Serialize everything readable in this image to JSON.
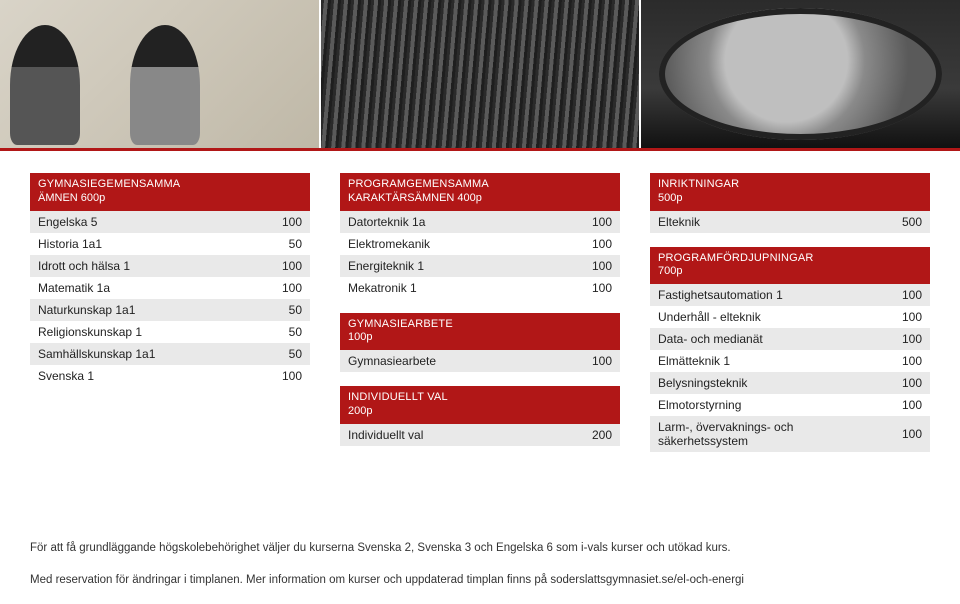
{
  "colors": {
    "red": "#b11717",
    "row_alt": "#e9e9e9",
    "text": "#222222",
    "bg": "#ffffff"
  },
  "col1": {
    "sections": [
      {
        "title1": "GYMNASIEGEMENSAMMA",
        "title2": "ÄMNEN  600p",
        "rows": [
          {
            "label": "Engelska 5",
            "value": "100"
          },
          {
            "label": "Historia 1a1",
            "value": "50"
          },
          {
            "label": "Idrott och hälsa 1",
            "value": "100"
          },
          {
            "label": "Matematik 1a",
            "value": "100"
          },
          {
            "label": "Naturkunskap 1a1",
            "value": "50"
          },
          {
            "label": "Religionskunskap 1",
            "value": "50"
          },
          {
            "label": "Samhällskunskap 1a1",
            "value": "50"
          },
          {
            "label": "Svenska 1",
            "value": "100"
          }
        ]
      }
    ]
  },
  "col2": {
    "sections": [
      {
        "title1": "PROGRAMGEMENSAMMA",
        "title2": "KARAKTÄRSÄMNEN  400p",
        "rows": [
          {
            "label": "Datorteknik 1a",
            "value": "100"
          },
          {
            "label": "Elektromekanik",
            "value": "100"
          },
          {
            "label": "Energiteknik 1",
            "value": "100"
          },
          {
            "label": "Mekatronik 1",
            "value": "100"
          }
        ]
      },
      {
        "title1": "GYMNASIEARBETE",
        "title2": "100p",
        "rows": [
          {
            "label": "Gymnasiearbete",
            "value": "100"
          }
        ]
      },
      {
        "title1": "INDIVIDUELLT VAL",
        "title2": "200p",
        "rows": [
          {
            "label": "Individuellt val",
            "value": "200"
          }
        ]
      }
    ]
  },
  "col3": {
    "sections": [
      {
        "title1": "INRIKTNINGAR",
        "title2": "500p",
        "rows": [
          {
            "label": "Elteknik",
            "value": "500"
          }
        ]
      },
      {
        "title1": "PROGRAMFÖRDJUPNINGAR",
        "title2": "700p",
        "rows": [
          {
            "label": "Fastighetsautomation 1",
            "value": "100"
          },
          {
            "label": "Underhåll - elteknik",
            "value": "100"
          },
          {
            "label": "Data- och medianät",
            "value": "100"
          },
          {
            "label": "Elmätteknik 1",
            "value": "100"
          },
          {
            "label": "Belysningsteknik",
            "value": "100"
          },
          {
            "label": "Elmotorstyrning",
            "value": "100"
          },
          {
            "label": "Larm-, övervaknings- och säkerhetssystem",
            "value": "100"
          }
        ]
      }
    ]
  },
  "footnotes": {
    "line1": "För att få grundläggande högskolebehörighet väljer du kurserna Svenska 2, Svenska 3 och Engelska 6 som i-vals kurser och utökad kurs.",
    "line2": "Med reservation för ändringar i timplanen. Mer information om kurser och uppdaterad timplan finns på soderslattsgymnasiet.se/el-och-energi"
  }
}
